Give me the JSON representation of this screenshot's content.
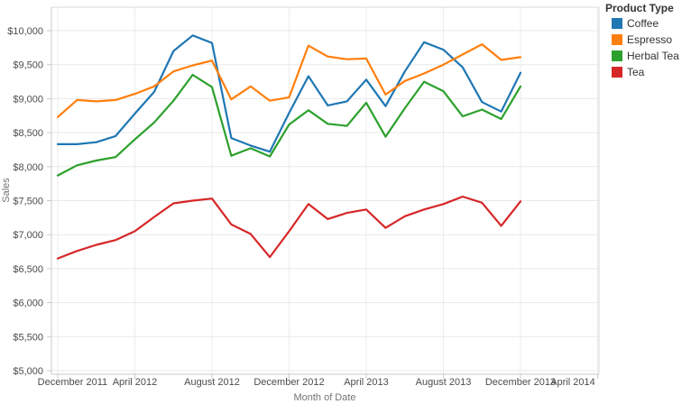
{
  "legend": {
    "title": "Product Type",
    "items": [
      {
        "label": "Coffee",
        "color": "#1f77b4"
      },
      {
        "label": "Espresso",
        "color": "#ff7f0e"
      },
      {
        "label": "Herbal Tea",
        "color": "#2ca02c"
      },
      {
        "label": "Tea",
        "color": "#d62728"
      }
    ]
  },
  "chart_data": {
    "type": "line",
    "title": "",
    "xlabel": "Month of Date",
    "ylabel": "Sales",
    "grid": true,
    "legend_position": "right",
    "ylim": [
      5000,
      10350
    ],
    "y_ticks": [
      {
        "value": 5000,
        "label": "$5,000"
      },
      {
        "value": 5500,
        "label": "$5,500"
      },
      {
        "value": 6000,
        "label": "$6,000"
      },
      {
        "value": 6500,
        "label": "$6,500"
      },
      {
        "value": 7000,
        "label": "$7,000"
      },
      {
        "value": 7500,
        "label": "$7,500"
      },
      {
        "value": 8000,
        "label": "$8,000"
      },
      {
        "value": 8500,
        "label": "$8,500"
      },
      {
        "value": 9000,
        "label": "$9,000"
      },
      {
        "value": 9500,
        "label": "$9,500"
      },
      {
        "value": 10000,
        "label": "$10,000"
      }
    ],
    "x_tick_labels": [
      "December 2011",
      "April 2012",
      "August 2012",
      "December 2012",
      "April 2013",
      "August 2013",
      "December 2013",
      "April 2014"
    ],
    "x_tick_month_indices": [
      0,
      4,
      8,
      12,
      16,
      20,
      24,
      28
    ],
    "x": [
      "December 2011",
      "January 2012",
      "February 2012",
      "March 2012",
      "April 2012",
      "May 2012",
      "June 2012",
      "July 2012",
      "August 2012",
      "September 2012",
      "October 2012",
      "November 2012",
      "December 2012",
      "January 2013",
      "February 2013",
      "March 2013",
      "April 2013",
      "May 2013",
      "June 2013",
      "July 2013",
      "August 2013",
      "September 2013",
      "October 2013",
      "November 2013",
      "December 2013"
    ],
    "series": [
      {
        "name": "Coffee",
        "color": "#1f77b4",
        "values": [
          8330,
          8330,
          8360,
          8450,
          8780,
          9100,
          9700,
          9930,
          9820,
          8420,
          8310,
          8220,
          8790,
          9330,
          8900,
          8960,
          9280,
          8890,
          9400,
          9830,
          9720,
          9460,
          8950,
          8810,
          9380
        ]
      },
      {
        "name": "Espresso",
        "color": "#ff7f0e",
        "values": [
          8730,
          8980,
          8960,
          8980,
          9070,
          9180,
          9400,
          9490,
          9560,
          8990,
          9180,
          8970,
          9020,
          9780,
          9620,
          9580,
          9590,
          9060,
          9260,
          9370,
          9500,
          9650,
          9800,
          9570,
          9610
        ]
      },
      {
        "name": "Herbal Tea",
        "color": "#2ca02c",
        "values": [
          7870,
          8020,
          8090,
          8140,
          8400,
          8650,
          8970,
          9350,
          9170,
          8160,
          8270,
          8150,
          8620,
          8830,
          8630,
          8600,
          8940,
          8440,
          8860,
          9250,
          9110,
          8740,
          8840,
          8700,
          9180
        ]
      },
      {
        "name": "Tea",
        "color": "#d62728",
        "values": [
          6650,
          6760,
          6850,
          6920,
          7050,
          7260,
          7460,
          7500,
          7530,
          7150,
          7010,
          6670,
          7050,
          7450,
          7230,
          7320,
          7370,
          7100,
          7270,
          7370,
          7450,
          7560,
          7470,
          7130,
          7490
        ]
      }
    ]
  }
}
